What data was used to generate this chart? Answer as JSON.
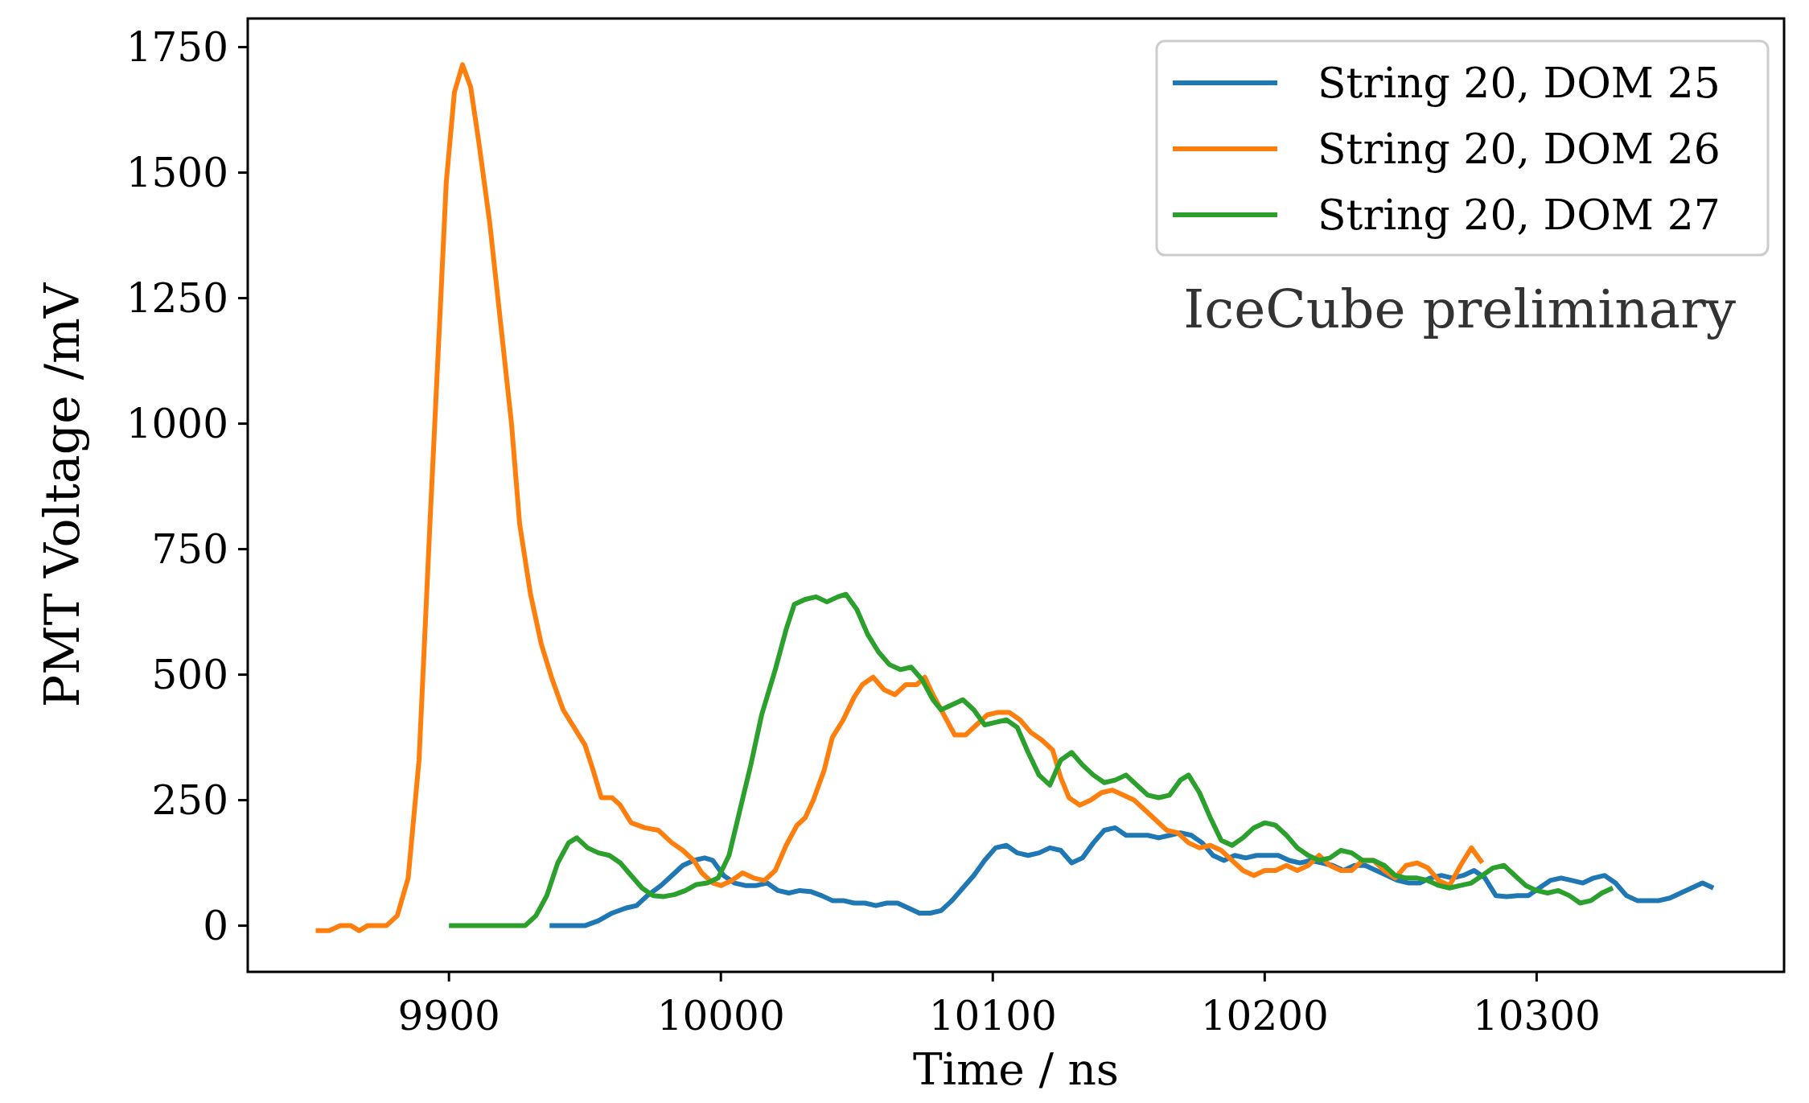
{
  "chart_data": {
    "type": "line",
    "xlabel": "Time / ns",
    "ylabel": "PMT Voltage /mV",
    "annotations": [
      "IceCube preliminary"
    ],
    "xlim": [
      9826,
      10391
    ],
    "ylim": [
      -92,
      1807
    ],
    "xticks": [
      9900,
      10000,
      10100,
      10200,
      10300
    ],
    "yticks": [
      0,
      250,
      500,
      750,
      1000,
      1250,
      1500,
      1750
    ],
    "grid": false,
    "legend": "top right",
    "marker": "none",
    "line_style": "solid",
    "series": [
      {
        "name": "String 20, DOM 25",
        "color": "#1f77b4",
        "x": [
          9937,
          9950,
          9955,
          9960,
          9965,
          9969,
          9973,
          9978,
          9982,
          9986,
          9990,
          9994,
          9997,
          10001,
          10005,
          10009,
          10013,
          10017,
          10021,
          10025,
          10029,
          10033,
          10037,
          10041,
          10045,
          10049,
          10053,
          10057,
          10061,
          10065,
          10069,
          10073,
          10077,
          10081,
          10085,
          10089,
          10093,
          10097,
          10101,
          10105,
          10109,
          10113,
          10117,
          10121,
          10125,
          10129,
          10133,
          10137,
          10141,
          10145,
          10149,
          10153,
          10157,
          10161,
          10165,
          10169,
          10173,
          10177,
          10181,
          10185,
          10189,
          10193,
          10197,
          10201,
          10205,
          10209,
          10213,
          10217,
          10221,
          10225,
          10229,
          10233,
          10237,
          10241,
          10245,
          10249,
          10253,
          10257,
          10261,
          10265,
          10269,
          10273,
          10277,
          10281,
          10285,
          10289,
          10293,
          10297,
          10301,
          10305,
          10309,
          10313,
          10317,
          10321,
          10325,
          10329,
          10333,
          10337,
          10341,
          10345,
          10349,
          10353,
          10357,
          10361,
          10365
        ],
        "values": [
          0,
          0,
          10,
          25,
          35,
          40,
          60,
          80,
          100,
          120,
          130,
          135,
          130,
          100,
          85,
          80,
          80,
          85,
          70,
          65,
          70,
          68,
          60,
          50,
          50,
          45,
          45,
          40,
          45,
          45,
          35,
          25,
          25,
          30,
          50,
          75,
          100,
          130,
          155,
          160,
          145,
          140,
          145,
          155,
          150,
          125,
          135,
          165,
          190,
          195,
          180,
          180,
          180,
          175,
          180,
          185,
          180,
          165,
          140,
          130,
          140,
          135,
          140,
          140,
          140,
          130,
          125,
          130,
          125,
          120,
          110,
          120,
          120,
          110,
          100,
          90,
          85,
          85,
          95,
          100,
          95,
          100,
          110,
          95,
          60,
          58,
          60,
          60,
          75,
          90,
          95,
          90,
          85,
          95,
          100,
          85,
          60,
          50,
          50,
          50,
          55,
          65,
          75,
          85,
          75
        ]
      },
      {
        "name": "String 20, DOM 26",
        "color": "#ff7f0e",
        "x": [
          9851,
          9856,
          9860,
          9864,
          9867,
          9870,
          9877,
          9881,
          9885,
          9889,
          9893,
          9897,
          9899,
          9902,
          9905,
          9908,
          9911,
          9915,
          9919,
          9923,
          9926,
          9930,
          9934,
          9938,
          9942,
          9946,
          9950,
          9953,
          9956,
          9960,
          9963,
          9967,
          9972,
          9977,
          9982,
          9986,
          9990,
          9993,
          9997,
          10000,
          10004,
          10008,
          10012,
          10016,
          10020,
          10024,
          10028,
          10031,
          10034,
          10038,
          10041,
          10045,
          10049,
          10052,
          10056,
          10060,
          10064,
          10068,
          10072,
          10075,
          10078,
          10082,
          10086,
          10090,
          10094,
          10098,
          10102,
          10106,
          10110,
          10114,
          10118,
          10122,
          10125,
          10128,
          10132,
          10136,
          10140,
          10144,
          10148,
          10152,
          10156,
          10160,
          10164,
          10168,
          10172,
          10176,
          10180,
          10184,
          10188,
          10192,
          10196,
          10200,
          10204,
          10208,
          10212,
          10216,
          10220,
          10224,
          10228,
          10232,
          10236,
          10240,
          10244,
          10248,
          10252,
          10256,
          10260,
          10264,
          10268,
          10272,
          10276,
          10280
        ],
        "values": [
          -10,
          -10,
          0,
          0,
          -10,
          0,
          0,
          20,
          95,
          330,
          800,
          1250,
          1480,
          1660,
          1715,
          1670,
          1560,
          1400,
          1200,
          1000,
          800,
          660,
          560,
          490,
          430,
          395,
          360,
          310,
          255,
          255,
          240,
          205,
          195,
          190,
          165,
          150,
          130,
          105,
          85,
          80,
          90,
          105,
          95,
          90,
          110,
          160,
          200,
          215,
          250,
          310,
          375,
          410,
          455,
          480,
          495,
          470,
          460,
          480,
          480,
          495,
          460,
          420,
          380,
          380,
          400,
          420,
          425,
          425,
          410,
          385,
          370,
          350,
          295,
          255,
          240,
          250,
          265,
          270,
          260,
          250,
          230,
          210,
          190,
          185,
          165,
          155,
          160,
          150,
          130,
          110,
          100,
          110,
          110,
          120,
          110,
          120,
          140,
          120,
          110,
          110,
          130,
          130,
          110,
          95,
          120,
          125,
          115,
          90,
          80,
          120,
          155,
          125
        ]
      },
      {
        "name": "String 20, DOM 27",
        "color": "#2ca02c",
        "x": [
          9900,
          9910,
          9920,
          9928,
          9932,
          9936,
          9940,
          9944,
          9947,
          9951,
          9955,
          9959,
          9963,
          9967,
          9971,
          9975,
          9979,
          9983,
          9987,
          9991,
          9995,
          9999,
          10003,
          10007,
          10011,
          10015,
          10020,
          10024,
          10027,
          10031,
          10035,
          10039,
          10043,
          10046,
          10050,
          10054,
          10058,
          10062,
          10066,
          10070,
          10074,
          10078,
          10081,
          10085,
          10089,
          10093,
          10097,
          10101,
          10105,
          10109,
          10113,
          10117,
          10121,
          10125,
          10129,
          10133,
          10137,
          10141,
          10145,
          10149,
          10153,
          10157,
          10161,
          10165,
          10169,
          10172,
          10176,
          10180,
          10184,
          10188,
          10192,
          10196,
          10200,
          10204,
          10208,
          10212,
          10216,
          10220,
          10224,
          10228,
          10232,
          10236,
          10240,
          10244,
          10248,
          10252,
          10256,
          10260,
          10264,
          10268,
          10272,
          10276,
          10280,
          10284,
          10288,
          10292,
          10296,
          10300,
          10304,
          10308,
          10312,
          10316,
          10320,
          10324,
          10328
        ],
        "values": [
          0,
          0,
          0,
          0,
          20,
          60,
          125,
          165,
          175,
          155,
          145,
          140,
          125,
          100,
          75,
          60,
          58,
          62,
          70,
          82,
          85,
          95,
          140,
          230,
          320,
          420,
          510,
          590,
          640,
          650,
          655,
          645,
          655,
          660,
          630,
          580,
          545,
          520,
          510,
          515,
          490,
          450,
          430,
          440,
          450,
          430,
          400,
          405,
          410,
          395,
          345,
          300,
          280,
          330,
          345,
          320,
          300,
          285,
          290,
          300,
          280,
          260,
          255,
          260,
          290,
          300,
          265,
          215,
          170,
          160,
          175,
          195,
          205,
          200,
          180,
          155,
          140,
          130,
          135,
          150,
          145,
          130,
          130,
          120,
          100,
          95,
          95,
          90,
          80,
          75,
          80,
          85,
          100,
          115,
          120,
          100,
          80,
          70,
          65,
          70,
          60,
          45,
          50,
          65,
          75
        ]
      }
    ]
  }
}
